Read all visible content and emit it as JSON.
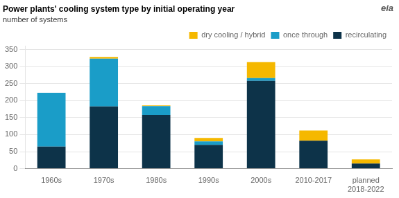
{
  "chart_data": {
    "type": "bar",
    "title": "Power plants' cooling system type by initial operating year",
    "subtitle": "number of systems",
    "annotations": [
      "eia"
    ],
    "categories": [
      "1960s",
      "1970s",
      "1980s",
      "1990s",
      "2000s",
      "2010-2017",
      "planned\n2018-2022"
    ],
    "series": [
      {
        "name": "recirculating",
        "color": "#0d3349",
        "values": [
          65,
          183,
          158,
          70,
          258,
          82,
          15
        ]
      },
      {
        "name": "once through",
        "color": "#1a9dc8",
        "values": [
          158,
          140,
          26,
          10,
          8,
          0,
          0
        ]
      },
      {
        "name": "dry cooling / hybrid",
        "color": "#f5b800",
        "values": [
          0,
          5,
          2,
          10,
          47,
          30,
          12
        ]
      }
    ],
    "stacked": true,
    "ylim": [
      0,
      360
    ],
    "yticks": [
      0,
      50,
      100,
      150,
      200,
      250,
      300,
      350
    ],
    "grid": true,
    "legend": "top"
  }
}
